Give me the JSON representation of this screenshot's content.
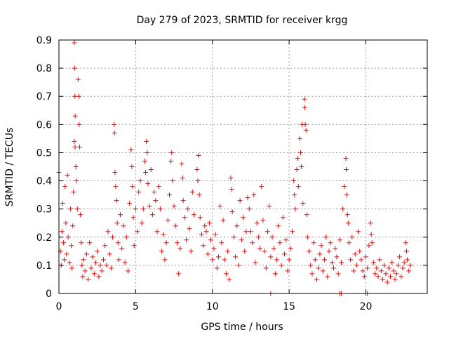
{
  "chart_data": {
    "type": "scatter",
    "title": "Day 279 of 2023, SRMTID for receiver krgg",
    "xlabel": "GPS time / hours",
    "ylabel": "SRMTID / TECUs",
    "xlim": [
      0,
      24
    ],
    "ylim": [
      0,
      0.9
    ],
    "xticks": [
      0,
      5,
      10,
      15,
      20
    ],
    "xtick_labels": [
      "0",
      "5",
      "10",
      "15",
      "20"
    ],
    "yticks": [
      0,
      0.1,
      0.2,
      0.3,
      0.4,
      0.5,
      0.6,
      0.7,
      0.8,
      0.9
    ],
    "ytick_labels": [
      "0",
      "0.1",
      "0.2",
      "0.3",
      "0.4",
      "0.5",
      "0.6",
      "0.7",
      "0.8",
      "0.9"
    ],
    "grid": true,
    "marker": "+",
    "color": "#ff0000",
    "series": [
      {
        "name": "SRMTID",
        "points": [
          [
            0.0,
            0.43
          ],
          [
            0.1,
            0.15
          ],
          [
            0.15,
            0.1
          ],
          [
            0.2,
            0.22
          ],
          [
            0.25,
            0.32
          ],
          [
            0.3,
            0.18
          ],
          [
            0.35,
            0.12
          ],
          [
            0.4,
            0.38
          ],
          [
            0.45,
            0.25
          ],
          [
            0.5,
            0.14
          ],
          [
            0.55,
            0.42
          ],
          [
            0.6,
            0.2
          ],
          [
            0.7,
            0.11
          ],
          [
            0.75,
            0.3
          ],
          [
            0.8,
            0.17
          ],
          [
            0.85,
            0.09
          ],
          [
            0.9,
            0.24
          ],
          [
            0.95,
            0.36
          ],
          [
            1.0,
            0.89
          ],
          [
            1.02,
            0.8
          ],
          [
            1.04,
            0.7
          ],
          [
            1.06,
            0.63
          ],
          [
            1.0,
            0.54
          ],
          [
            1.05,
            0.52
          ],
          [
            1.1,
            0.45
          ],
          [
            1.15,
            0.4
          ],
          [
            1.2,
            0.3
          ],
          [
            1.25,
            0.76
          ],
          [
            1.3,
            0.7
          ],
          [
            1.32,
            0.6
          ],
          [
            1.35,
            0.52
          ],
          [
            1.4,
            0.28
          ],
          [
            1.45,
            0.18
          ],
          [
            1.5,
            0.1
          ],
          [
            1.55,
            0.06
          ],
          [
            1.6,
            0.12
          ],
          [
            1.7,
            0.08
          ],
          [
            1.8,
            0.14
          ],
          [
            1.9,
            0.05
          ],
          [
            2.0,
            0.18
          ],
          [
            2.1,
            0.09
          ],
          [
            2.2,
            0.13
          ],
          [
            2.3,
            0.07
          ],
          [
            2.4,
            0.11
          ],
          [
            2.5,
            0.15
          ],
          [
            2.6,
            0.06
          ],
          [
            2.7,
            0.1
          ],
          [
            2.8,
            0.08
          ],
          [
            2.9,
            0.12
          ],
          [
            3.0,
            0.17
          ],
          [
            3.1,
            0.1
          ],
          [
            3.2,
            0.22
          ],
          [
            3.3,
            0.14
          ],
          [
            3.4,
            0.09
          ],
          [
            3.5,
            0.2
          ],
          [
            3.6,
            0.6
          ],
          [
            3.62,
            0.57
          ],
          [
            3.65,
            0.43
          ],
          [
            3.7,
            0.38
          ],
          [
            3.75,
            0.33
          ],
          [
            3.8,
            0.25
          ],
          [
            3.85,
            0.18
          ],
          [
            3.9,
            0.12
          ],
          [
            4.0,
            0.28
          ],
          [
            4.1,
            0.16
          ],
          [
            4.2,
            0.24
          ],
          [
            4.3,
            0.11
          ],
          [
            4.4,
            0.2
          ],
          [
            4.5,
            0.08
          ],
          [
            4.6,
            0.32
          ],
          [
            4.7,
            0.51
          ],
          [
            4.75,
            0.45
          ],
          [
            4.8,
            0.38
          ],
          [
            4.85,
            0.27
          ],
          [
            4.9,
            0.17
          ],
          [
            5.0,
            0.3
          ],
          [
            5.1,
            0.22
          ],
          [
            5.2,
            0.36
          ],
          [
            5.3,
            0.4
          ],
          [
            5.4,
            0.25
          ],
          [
            5.5,
            0.3
          ],
          [
            5.6,
            0.47
          ],
          [
            5.65,
            0.43
          ],
          [
            5.7,
            0.54
          ],
          [
            5.75,
            0.5
          ],
          [
            5.8,
            0.39
          ],
          [
            5.9,
            0.31
          ],
          [
            6.0,
            0.44
          ],
          [
            6.1,
            0.28
          ],
          [
            6.2,
            0.36
          ],
          [
            6.3,
            0.33
          ],
          [
            6.4,
            0.22
          ],
          [
            6.5,
            0.38
          ],
          [
            6.6,
            0.3
          ],
          [
            6.7,
            0.15
          ],
          [
            6.8,
            0.21
          ],
          [
            6.9,
            0.12
          ],
          [
            7.0,
            0.18
          ],
          [
            7.1,
            0.26
          ],
          [
            7.2,
            0.35
          ],
          [
            7.3,
            0.47
          ],
          [
            7.35,
            0.5
          ],
          [
            7.4,
            0.4
          ],
          [
            7.5,
            0.31
          ],
          [
            7.6,
            0.24
          ],
          [
            7.7,
            0.18
          ],
          [
            7.8,
            0.07
          ],
          [
            7.9,
            0.16
          ],
          [
            8.0,
            0.46
          ],
          [
            8.05,
            0.41
          ],
          [
            8.1,
            0.33
          ],
          [
            8.2,
            0.27
          ],
          [
            8.3,
            0.19
          ],
          [
            8.4,
            0.3
          ],
          [
            8.5,
            0.23
          ],
          [
            8.6,
            0.15
          ],
          [
            8.7,
            0.36
          ],
          [
            8.8,
            0.28
          ],
          [
            9.0,
            0.44
          ],
          [
            9.05,
            0.4
          ],
          [
            9.1,
            0.49
          ],
          [
            9.15,
            0.35
          ],
          [
            9.2,
            0.27
          ],
          [
            9.3,
            0.21
          ],
          [
            9.4,
            0.17
          ],
          [
            9.5,
            0.24
          ],
          [
            9.6,
            0.22
          ],
          [
            9.7,
            0.14
          ],
          [
            9.8,
            0.25
          ],
          [
            9.9,
            0.19
          ],
          [
            10.0,
            0.12
          ],
          [
            10.1,
            0.16
          ],
          [
            10.2,
            0.21
          ],
          [
            10.3,
            0.09
          ],
          [
            10.4,
            0.13
          ],
          [
            10.5,
            0.31
          ],
          [
            10.6,
            0.18
          ],
          [
            10.7,
            0.26
          ],
          [
            10.8,
            0.12
          ],
          [
            10.9,
            0.07
          ],
          [
            11.0,
            0.15
          ],
          [
            11.1,
            0.05
          ],
          [
            11.2,
            0.41
          ],
          [
            11.25,
            0.37
          ],
          [
            11.3,
            0.29
          ],
          [
            11.4,
            0.2
          ],
          [
            11.5,
            0.13
          ],
          [
            11.6,
            0.24
          ],
          [
            11.7,
            0.1
          ],
          [
            11.8,
            0.33
          ],
          [
            11.9,
            0.19
          ],
          [
            12.0,
            0.27
          ],
          [
            12.1,
            0.15
          ],
          [
            12.2,
            0.22
          ],
          [
            12.3,
            0.34
          ],
          [
            12.4,
            0.3
          ],
          [
            12.5,
            0.22
          ],
          [
            12.6,
            0.18
          ],
          [
            12.7,
            0.35
          ],
          [
            12.8,
            0.11
          ],
          [
            12.9,
            0.25
          ],
          [
            13.0,
            0.2
          ],
          [
            13.1,
            0.16
          ],
          [
            13.2,
            0.38
          ],
          [
            13.3,
            0.26
          ],
          [
            13.4,
            0.15
          ],
          [
            13.5,
            0.09
          ],
          [
            13.6,
            0.22
          ],
          [
            13.7,
            0.31
          ],
          [
            13.8,
            0.13
          ],
          [
            13.9,
            0.2
          ],
          [
            14.0,
            0.16
          ],
          [
            14.1,
            0.07
          ],
          [
            14.2,
            0.12
          ],
          [
            14.3,
            0.24
          ],
          [
            14.4,
            0.18
          ],
          [
            14.5,
            0.1
          ],
          [
            14.6,
            0.27
          ],
          [
            14.7,
            0.14
          ],
          [
            14.8,
            0.19
          ],
          [
            14.9,
            0.08
          ],
          [
            15.0,
            0.12
          ],
          [
            15.1,
            0.16
          ],
          [
            15.2,
            0.22
          ],
          [
            15.3,
            0.4
          ],
          [
            15.35,
            0.35
          ],
          [
            15.4,
            0.3
          ],
          [
            15.5,
            0.44
          ],
          [
            15.55,
            0.48
          ],
          [
            15.6,
            0.38
          ],
          [
            15.7,
            0.55
          ],
          [
            15.75,
            0.5
          ],
          [
            15.8,
            0.45
          ],
          [
            15.85,
            0.6
          ],
          [
            15.9,
            0.32
          ],
          [
            16.0,
            0.69
          ],
          [
            16.02,
            0.66
          ],
          [
            16.05,
            0.6
          ],
          [
            16.1,
            0.58
          ],
          [
            16.15,
            0.28
          ],
          [
            16.2,
            0.2
          ],
          [
            16.3,
            0.15
          ],
          [
            16.4,
            0.1
          ],
          [
            16.5,
            0.07
          ],
          [
            16.6,
            0.18
          ],
          [
            16.7,
            0.12
          ],
          [
            16.8,
            0.05
          ],
          [
            16.9,
            0.09
          ],
          [
            17.0,
            0.14
          ],
          [
            17.1,
            0.17
          ],
          [
            17.2,
            0.08
          ],
          [
            17.3,
            0.12
          ],
          [
            17.4,
            0.2
          ],
          [
            17.5,
            0.06
          ],
          [
            17.6,
            0.15
          ],
          [
            17.7,
            0.18
          ],
          [
            17.8,
            0.11
          ],
          [
            17.9,
            0.09
          ],
          [
            18.0,
            0.16
          ],
          [
            18.1,
            0.13
          ],
          [
            18.2,
            0.07
          ],
          [
            18.3,
            0.19
          ],
          [
            18.4,
            0.11
          ],
          [
            18.5,
            0.3
          ],
          [
            18.6,
            0.38
          ],
          [
            18.7,
            0.48
          ],
          [
            18.72,
            0.44
          ],
          [
            18.75,
            0.35
          ],
          [
            18.8,
            0.28
          ],
          [
            18.85,
            0.25
          ],
          [
            18.9,
            0.18
          ],
          [
            19.0,
            0.12
          ],
          [
            19.1,
            0.2
          ],
          [
            19.2,
            0.08
          ],
          [
            19.3,
            0.14
          ],
          [
            19.4,
            0.1
          ],
          [
            19.5,
            0.22
          ],
          [
            19.6,
            0.15
          ],
          [
            19.7,
            0.12
          ],
          [
            19.8,
            0.08
          ],
          [
            19.9,
            0.06
          ],
          [
            20.0,
            0.13
          ],
          [
            20.1,
            0.09
          ],
          [
            20.2,
            0.17
          ],
          [
            20.3,
            0.25
          ],
          [
            20.35,
            0.21
          ],
          [
            20.4,
            0.18
          ],
          [
            20.5,
            0.11
          ],
          [
            20.6,
            0.07
          ],
          [
            20.7,
            0.09
          ],
          [
            20.8,
            0.06
          ],
          [
            20.9,
            0.12
          ],
          [
            21.0,
            0.08
          ],
          [
            21.1,
            0.05
          ],
          [
            21.2,
            0.1
          ],
          [
            21.3,
            0.07
          ],
          [
            21.4,
            0.04
          ],
          [
            21.5,
            0.09
          ],
          [
            21.6,
            0.06
          ],
          [
            21.7,
            0.11
          ],
          [
            21.8,
            0.08
          ],
          [
            21.9,
            0.05
          ],
          [
            22.0,
            0.07
          ],
          [
            22.1,
            0.1
          ],
          [
            22.2,
            0.13
          ],
          [
            22.3,
            0.06
          ],
          [
            22.4,
            0.09
          ],
          [
            22.5,
            0.11
          ],
          [
            22.6,
            0.18
          ],
          [
            22.65,
            0.15
          ],
          [
            22.7,
            0.12
          ],
          [
            22.8,
            0.08
          ],
          [
            22.9,
            0.1
          ],
          [
            13.8,
            0.0
          ],
          [
            18.3,
            0.0
          ],
          [
            18.4,
            0.0
          ],
          [
            20.0,
            0.0
          ],
          [
            20.1,
            0.0
          ]
        ]
      }
    ]
  }
}
